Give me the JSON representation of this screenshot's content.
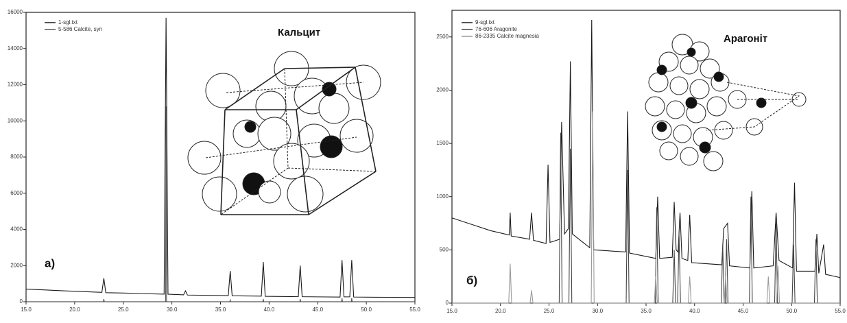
{
  "chart_data": [
    {
      "type": "line",
      "title": "Кальцит",
      "panel_label": "а)",
      "xlim": [
        15,
        55
      ],
      "xticks": [
        {
          "value": 15,
          "label": "15.0"
        },
        {
          "value": 20,
          "label": "20.0"
        },
        {
          "value": 25,
          "label": "25.0"
        },
        {
          "value": 30,
          "label": "30.0"
        },
        {
          "value": 35,
          "label": "35.0"
        },
        {
          "value": 40,
          "label": "40.0"
        },
        {
          "value": 45,
          "label": "45.0"
        },
        {
          "value": 50,
          "label": "50.0"
        },
        {
          "value": 55,
          "label": "55.0"
        }
      ],
      "ylim": [
        0,
        16000
      ],
      "yticks": [
        0,
        2000,
        4000,
        6000,
        8000,
        10000,
        12000,
        14000,
        16000
      ],
      "series": [
        {
          "name": "1-sgl.txt",
          "color": "#1a1a1a",
          "x": [
            15,
            17,
            19,
            21,
            22.8,
            23.0,
            23.2,
            25,
            27,
            29.2,
            29.4,
            29.6,
            31.2,
            31.4,
            31.6,
            33,
            35.8,
            36.0,
            36.2,
            39.2,
            39.4,
            39.6,
            43.0,
            43.2,
            43.4,
            45,
            47.3,
            47.5,
            47.7,
            48.3,
            48.5,
            48.7,
            51,
            55
          ],
          "values": [
            700,
            650,
            600,
            560,
            520,
            1300,
            500,
            480,
            450,
            420,
            15700,
            420,
            380,
            600,
            370,
            360,
            340,
            1700,
            330,
            310,
            2200,
            300,
            280,
            2000,
            280,
            270,
            260,
            2300,
            270,
            270,
            2300,
            260,
            250,
            240
          ]
        },
        {
          "name": "5-586 Calcite, syn",
          "color": "#555555",
          "x": [
            15,
            22.95,
            23.0,
            23.05,
            29.35,
            29.4,
            29.45,
            35.95,
            36.0,
            36.05,
            39.35,
            39.4,
            39.45,
            43.15,
            43.2,
            43.25,
            47.45,
            47.5,
            47.55,
            48.45,
            48.5,
            48.55,
            55
          ],
          "values": [
            0,
            0,
            150,
            0,
            0,
            10800,
            0,
            0,
            100,
            0,
            0,
            150,
            0,
            0,
            150,
            0,
            0,
            200,
            0,
            0,
            200,
            0,
            0
          ]
        }
      ]
    },
    {
      "type": "line",
      "title": "Арагоніт",
      "panel_label": "б)",
      "xlim": [
        15,
        55
      ],
      "xticks": [
        {
          "value": 15,
          "label": "15.0"
        },
        {
          "value": 20,
          "label": "20.0"
        },
        {
          "value": 25,
          "label": "25.0"
        },
        {
          "value": 30,
          "label": "30.0"
        },
        {
          "value": 35,
          "label": "35.0"
        },
        {
          "value": 40,
          "label": "40.0"
        },
        {
          "value": 45,
          "label": "45.0"
        },
        {
          "value": 50,
          "label": "50.0"
        },
        {
          "value": 55,
          "label": "55.0"
        }
      ],
      "ylim": [
        0,
        2750
      ],
      "yticks": [
        0,
        500,
        1000,
        1500,
        2000,
        2500
      ],
      "series": [
        {
          "name": "9-sgl.txt",
          "color": "#1a1a1a",
          "x": [
            15,
            17,
            19,
            20.9,
            21.0,
            21.1,
            23.0,
            23.2,
            23.4,
            24.7,
            24.9,
            25.1,
            26.1,
            26.3,
            26.6,
            27.0,
            27.2,
            27.4,
            29.2,
            29.4,
            29.6,
            32.9,
            33.1,
            33.3,
            36.0,
            36.2,
            36.4,
            37.7,
            37.9,
            38.1,
            38.3,
            38.5,
            38.7,
            39.3,
            39.5,
            39.7,
            42.8,
            43.0,
            43.4,
            43.6,
            45.7,
            45.9,
            46.1,
            48.1,
            48.4,
            48.7,
            50.1,
            50.3,
            50.5,
            52.4,
            52.6,
            52.8,
            53.3,
            53.5,
            55
          ],
          "values": [
            800,
            740,
            680,
            640,
            850,
            630,
            600,
            850,
            590,
            560,
            1300,
            570,
            600,
            1700,
            650,
            700,
            2270,
            650,
            520,
            2660,
            500,
            480,
            1800,
            470,
            420,
            1000,
            420,
            430,
            950,
            500,
            480,
            850,
            420,
            400,
            830,
            380,
            360,
            700,
            750,
            350,
            330,
            1050,
            330,
            350,
            850,
            400,
            330,
            1130,
            300,
            300,
            650,
            280,
            550,
            270,
            240
          ]
        },
        {
          "name": "76-606 Aragonite",
          "color": "#444444",
          "x": [
            15,
            26.05,
            26.2,
            26.35,
            27.05,
            27.2,
            27.35,
            32.95,
            33.1,
            33.25,
            35.95,
            36.1,
            36.25,
            37.75,
            37.9,
            38.05,
            38.25,
            38.4,
            38.55,
            42.75,
            42.9,
            43.05,
            43.15,
            43.3,
            43.45,
            45.65,
            45.8,
            45.95,
            48.25,
            48.4,
            48.55,
            50.05,
            50.2,
            50.35,
            52.35,
            52.5,
            52.65,
            55
          ],
          "values": [
            0,
            0,
            1600,
            0,
            0,
            1450,
            0,
            0,
            1250,
            0,
            0,
            900,
            0,
            0,
            500,
            0,
            0,
            650,
            0,
            0,
            550,
            0,
            0,
            600,
            0,
            0,
            1000,
            0,
            0,
            750,
            0,
            0,
            550,
            0,
            0,
            600,
            0,
            0
          ]
        },
        {
          "name": "86-2335 Calcite magnesia",
          "color": "#9a9a9a",
          "x": [
            15,
            20.85,
            21.0,
            21.15,
            23.05,
            23.2,
            23.35,
            29.35,
            29.5,
            29.65,
            35.85,
            36.0,
            36.15,
            39.35,
            39.5,
            39.65,
            43.05,
            43.2,
            43.35,
            47.45,
            47.6,
            47.75,
            48.45,
            48.6,
            48.75,
            55
          ],
          "values": [
            0,
            0,
            370,
            0,
            0,
            120,
            0,
            0,
            1800,
            0,
            0,
            250,
            0,
            0,
            250,
            0,
            0,
            250,
            0,
            0,
            250,
            0,
            0,
            350,
            0,
            0
          ]
        }
      ]
    }
  ]
}
